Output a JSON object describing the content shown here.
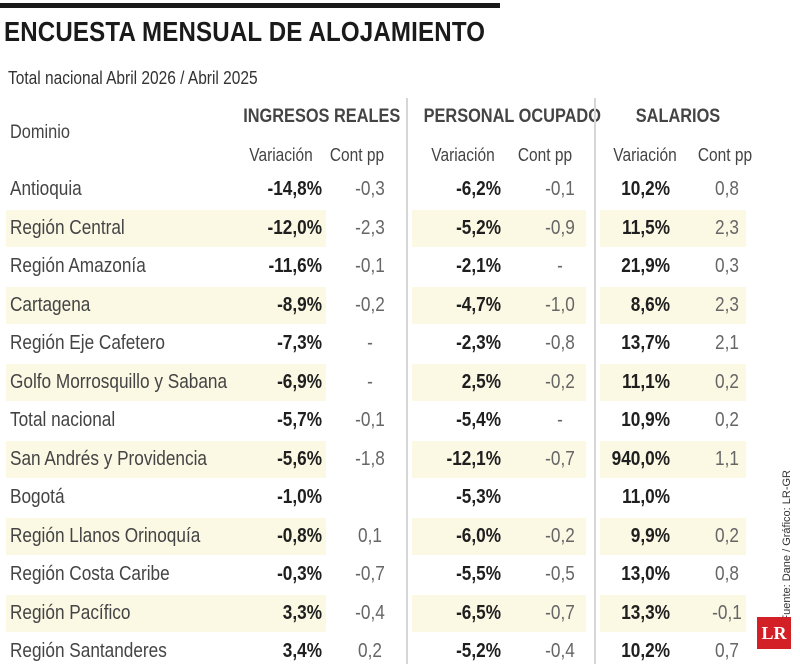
{
  "title": "ENCUESTA MENSUAL DE ALOJAMIENTO",
  "subtitle": "Total nacional Abril 2026 / Abril 2025",
  "header": {
    "domain": "Dominio",
    "groups": [
      "INGRESOS REALES",
      "PERSONAL OCUPADO",
      "SALARIOS"
    ],
    "variation": "Variación",
    "cont": "Cont pp"
  },
  "rows": [
    {
      "dominio": "Antioquia",
      "ing_var": "-14,8%",
      "ing_cont": "-0,3",
      "per_var": "-6,2%",
      "per_cont": "-0,1",
      "sal_var": "10,2%",
      "sal_cont": "0,8"
    },
    {
      "dominio": "Región Central",
      "ing_var": "-12,0%",
      "ing_cont": "-2,3",
      "per_var": "-5,2%",
      "per_cont": "-0,9",
      "sal_var": "11,5%",
      "sal_cont": "2,3"
    },
    {
      "dominio": "Región Amazonía",
      "ing_var": "-11,6%",
      "ing_cont": "-0,1",
      "per_var": "-2,1%",
      "per_cont": "-",
      "sal_var": "21,9%",
      "sal_cont": "0,3"
    },
    {
      "dominio": "Cartagena",
      "ing_var": "-8,9%",
      "ing_cont": "-0,2",
      "per_var": "-4,7%",
      "per_cont": "-1,0",
      "sal_var": "8,6%",
      "sal_cont": "2,3"
    },
    {
      "dominio": "Región Eje Cafetero",
      "ing_var": "-7,3%",
      "ing_cont": "-",
      "per_var": "-2,3%",
      "per_cont": "-0,8",
      "sal_var": "13,7%",
      "sal_cont": "2,1"
    },
    {
      "dominio": "Golfo Morrosquillo y Sabana",
      "ing_var": "-6,9%",
      "ing_cont": "-",
      "per_var": "2,5%",
      "per_cont": "-0,2",
      "sal_var": "11,1%",
      "sal_cont": "0,2"
    },
    {
      "dominio": "Total nacional",
      "ing_var": "-5,7%",
      "ing_cont": "-0,1",
      "per_var": "-5,4%",
      "per_cont": "-",
      "sal_var": "10,9%",
      "sal_cont": "0,2"
    },
    {
      "dominio": "San Andrés y Providencia",
      "ing_var": "-5,6%",
      "ing_cont": "-1,8",
      "per_var": "-12,1%",
      "per_cont": "-0,7",
      "sal_var": "940,0%",
      "sal_cont": "1,1"
    },
    {
      "dominio": "Bogotá",
      "ing_var": "-1,0%",
      "ing_cont": "",
      "per_var": "-5,3%",
      "per_cont": "",
      "sal_var": "11,0%",
      "sal_cont": ""
    },
    {
      "dominio": "Región Llanos Orinoquía",
      "ing_var": "-0,8%",
      "ing_cont": "0,1",
      "per_var": "-6,0%",
      "per_cont": "-0,2",
      "sal_var": "9,9%",
      "sal_cont": "0,2"
    },
    {
      "dominio": "Región Costa Caribe",
      "ing_var": "-0,3%",
      "ing_cont": "-0,7",
      "per_var": "-5,5%",
      "per_cont": "-0,5",
      "sal_var": "13,0%",
      "sal_cont": "0,8"
    },
    {
      "dominio": "Región Pacífico",
      "ing_var": "3,3%",
      "ing_cont": "-0,4",
      "per_var": "-6,5%",
      "per_cont": "-0,7",
      "sal_var": "13,3%",
      "sal_cont": "-0,1"
    },
    {
      "dominio": "Región Santanderes",
      "ing_var": "3,4%",
      "ing_cont": "0,2",
      "per_var": "-5,2%",
      "per_cont": "-0,4",
      "sal_var": "10,2%",
      "sal_cont": "0,7"
    }
  ],
  "source": "Fuente: Dane / Gráfico: LR-GR",
  "logo": "LR",
  "colors": {
    "shade": "#fbf8e4",
    "logo_bg": "#d32027",
    "title": "#1a1a1a"
  }
}
